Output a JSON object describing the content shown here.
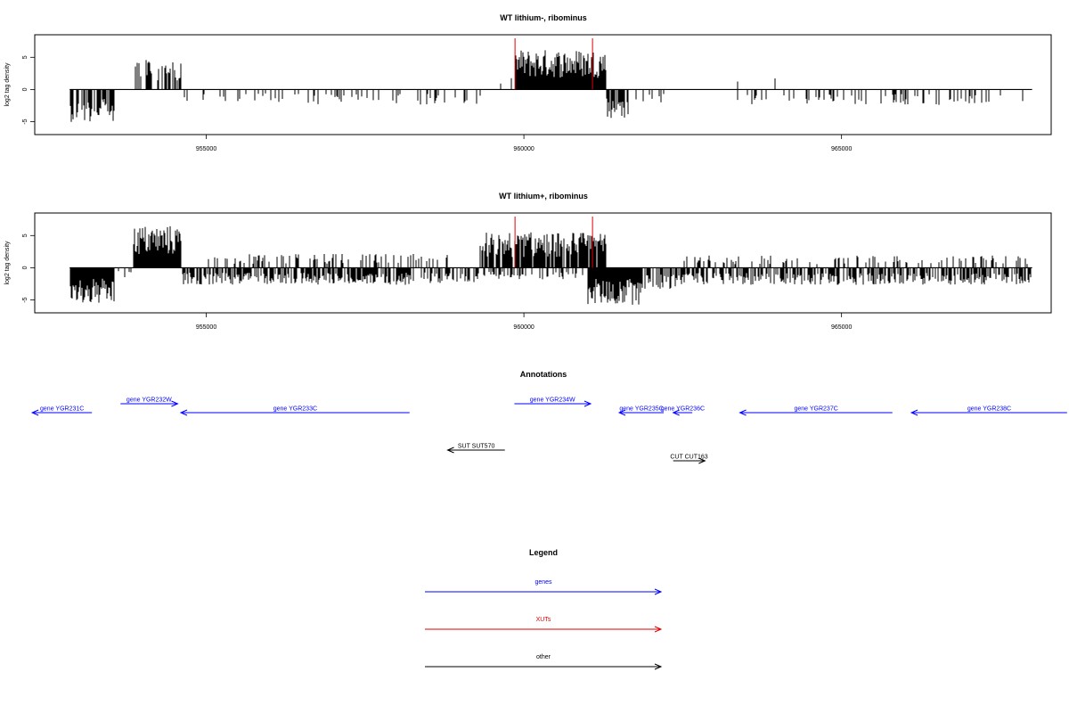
{
  "colors": {
    "signal": "#000000",
    "xut": "#e00000",
    "gene": "#0000ff",
    "other": "#000000"
  },
  "chart_data": [
    {
      "type": "bar",
      "title": "WT lithium-, ribominus",
      "ylabel": "log2 tag density",
      "xlim": [
        952300,
        968300
      ],
      "ylim": [
        -7,
        8.5
      ],
      "yticks": [
        -5,
        0,
        5
      ],
      "xticks": [
        955000,
        960000,
        965000
      ],
      "grid": false,
      "markers": [
        959860,
        961080
      ],
      "regions": [
        {
          "from": 952850,
          "to": 953550,
          "level": -4.2,
          "density": 0.7
        },
        {
          "from": 953850,
          "to": 954600,
          "level": 4.0,
          "density": 0.55
        },
        {
          "from": 954600,
          "to": 956500,
          "level": -1.6,
          "density": 0.22
        },
        {
          "from": 956500,
          "to": 959400,
          "level": -2.0,
          "density": 0.18
        },
        {
          "from": 959400,
          "to": 959820,
          "level": 1.5,
          "density": 0.05
        },
        {
          "from": 959870,
          "to": 961300,
          "level": 5.2,
          "density": 1.0
        },
        {
          "from": 961300,
          "to": 961650,
          "level": -3.8,
          "density": 0.75
        },
        {
          "from": 961650,
          "to": 962300,
          "level": -1.8,
          "density": 0.12
        },
        {
          "from": 962300,
          "to": 964000,
          "level": 1.5,
          "density": 0.02
        },
        {
          "from": 963300,
          "to": 967900,
          "level": -2.0,
          "density": 0.18
        }
      ]
    },
    {
      "type": "bar",
      "title": "WT lithium+, ribominus",
      "ylabel": "log2 tag density",
      "xlim": [
        952300,
        968300
      ],
      "ylim": [
        -7,
        8.5
      ],
      "yticks": [
        -5,
        0,
        5
      ],
      "xticks": [
        955000,
        960000,
        965000
      ],
      "grid": false,
      "markers": [
        959860,
        961080
      ],
      "regions": [
        {
          "from": 952850,
          "to": 953550,
          "level": -4.8,
          "density": 1.0
        },
        {
          "from": 953550,
          "to": 953850,
          "level": -1.5,
          "density": 0.2
        },
        {
          "from": 953850,
          "to": 954600,
          "level": 5.5,
          "density": 1.0
        },
        {
          "from": 954600,
          "to": 958200,
          "level": -2.2,
          "density": 0.7
        },
        {
          "from": 955000,
          "to": 958800,
          "level": 1.8,
          "density": 0.25
        },
        {
          "from": 958200,
          "to": 959300,
          "level": -2.0,
          "density": 0.5
        },
        {
          "from": 959300,
          "to": 961300,
          "level": 4.6,
          "density": 0.9
        },
        {
          "from": 959300,
          "to": 961000,
          "level": -1.5,
          "density": 0.3
        },
        {
          "from": 961000,
          "to": 961850,
          "level": -4.8,
          "density": 1.0
        },
        {
          "from": 961850,
          "to": 962400,
          "level": -2.8,
          "density": 0.6
        },
        {
          "from": 962400,
          "to": 968000,
          "level": -2.2,
          "density": 0.6
        },
        {
          "from": 962400,
          "to": 968000,
          "level": 1.6,
          "density": 0.18
        }
      ]
    }
  ],
  "annotations": {
    "title": "Annotations",
    "items": [
      {
        "label": "gene YGR231C",
        "type": "gene",
        "from": 953200,
        "to": 952260,
        "row": 1
      },
      {
        "label": "gene YGR232W",
        "type": "gene",
        "from": 953650,
        "to": 954550,
        "row": 0
      },
      {
        "label": "gene YGR233C",
        "type": "gene",
        "from": 958200,
        "to": 954600,
        "row": 1
      },
      {
        "label": "gene YGR234W",
        "type": "gene",
        "from": 959850,
        "to": 961050,
        "row": 0
      },
      {
        "label": "gene YGR235C",
        "type": "gene",
        "from": 962200,
        "to": 961500,
        "row": 1
      },
      {
        "label": "gene YGR236C",
        "type": "gene",
        "from": 962650,
        "to": 962350,
        "row": 1
      },
      {
        "label": "gene YGR237C",
        "type": "gene",
        "from": 965800,
        "to": 963400,
        "row": 1
      },
      {
        "label": "gene YGR238C",
        "type": "gene",
        "from": 968550,
        "to": 966100,
        "row": 1
      },
      {
        "label": "SUT SUT570",
        "type": "other",
        "from": 959700,
        "to": 958800,
        "row": 2
      },
      {
        "label": "CUT CUT163",
        "type": "other",
        "from": 962350,
        "to": 962850,
        "row": 3
      }
    ]
  },
  "legend": {
    "title": "Legend",
    "entries": [
      {
        "label": "genes",
        "type": "gene"
      },
      {
        "label": "XUTs",
        "type": "xut"
      },
      {
        "label": "other",
        "type": "other"
      }
    ]
  }
}
